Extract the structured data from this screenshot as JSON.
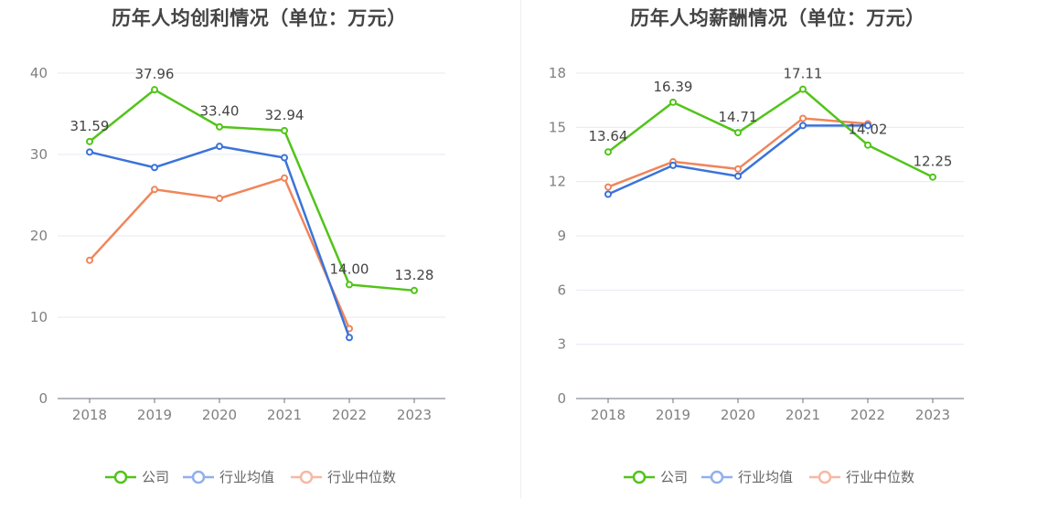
{
  "charts": [
    {
      "title": "历年人均创利情况（单位：万元）",
      "chart_data": {
        "type": "line",
        "title": "历年人均创利情况（单位：万元）",
        "categories": [
          "2018",
          "2019",
          "2020",
          "2021",
          "2022",
          "2023"
        ],
        "ylim": [
          0,
          40
        ],
        "yticks": [
          0,
          10,
          20,
          30,
          40
        ],
        "grid": true,
        "legend": "bottom",
        "series": [
          {
            "name": "公司",
            "color": "#52c41a",
            "values": [
              31.59,
              37.96,
              33.4,
              32.94,
              14.0,
              13.28
            ],
            "labels": [
              "31.59",
              "37.96",
              "33.40",
              "32.94",
              "14.00",
              "13.28"
            ]
          },
          {
            "name": "行业均值",
            "color": "#3b73d9",
            "values": [
              30.3,
              28.4,
              31.0,
              29.6,
              7.5,
              null
            ]
          },
          {
            "name": "行业中位数",
            "color": "#f0855a",
            "values": [
              17.0,
              25.7,
              24.6,
              27.1,
              8.6,
              null
            ]
          }
        ]
      }
    },
    {
      "title": "历年人均薪酬情况（单位：万元）",
      "chart_data": {
        "type": "line",
        "title": "历年人均薪酬情况（单位：万元）",
        "categories": [
          "2018",
          "2019",
          "2020",
          "2021",
          "2022",
          "2023"
        ],
        "ylim": [
          0,
          18
        ],
        "yticks": [
          0,
          3,
          6,
          9,
          12,
          15,
          18
        ],
        "grid": true,
        "legend": "bottom",
        "series": [
          {
            "name": "公司",
            "color": "#52c41a",
            "values": [
              13.64,
              16.39,
              14.71,
              17.11,
              14.02,
              12.25
            ],
            "labels": [
              "13.64",
              "16.39",
              "14.71",
              "17.11",
              "14.02",
              "12.25"
            ]
          },
          {
            "name": "行业均值",
            "color": "#3b73d9",
            "values": [
              11.3,
              12.9,
              12.3,
              15.1,
              15.1,
              null
            ]
          },
          {
            "name": "行业中位数",
            "color": "#f0855a",
            "values": [
              11.7,
              13.1,
              12.7,
              15.5,
              15.2,
              null
            ]
          }
        ]
      }
    }
  ],
  "legend_colors": {
    "公司": "#52c41a",
    "行业均值": "#8fb0ec",
    "行业中位数": "#f7b8a2"
  }
}
